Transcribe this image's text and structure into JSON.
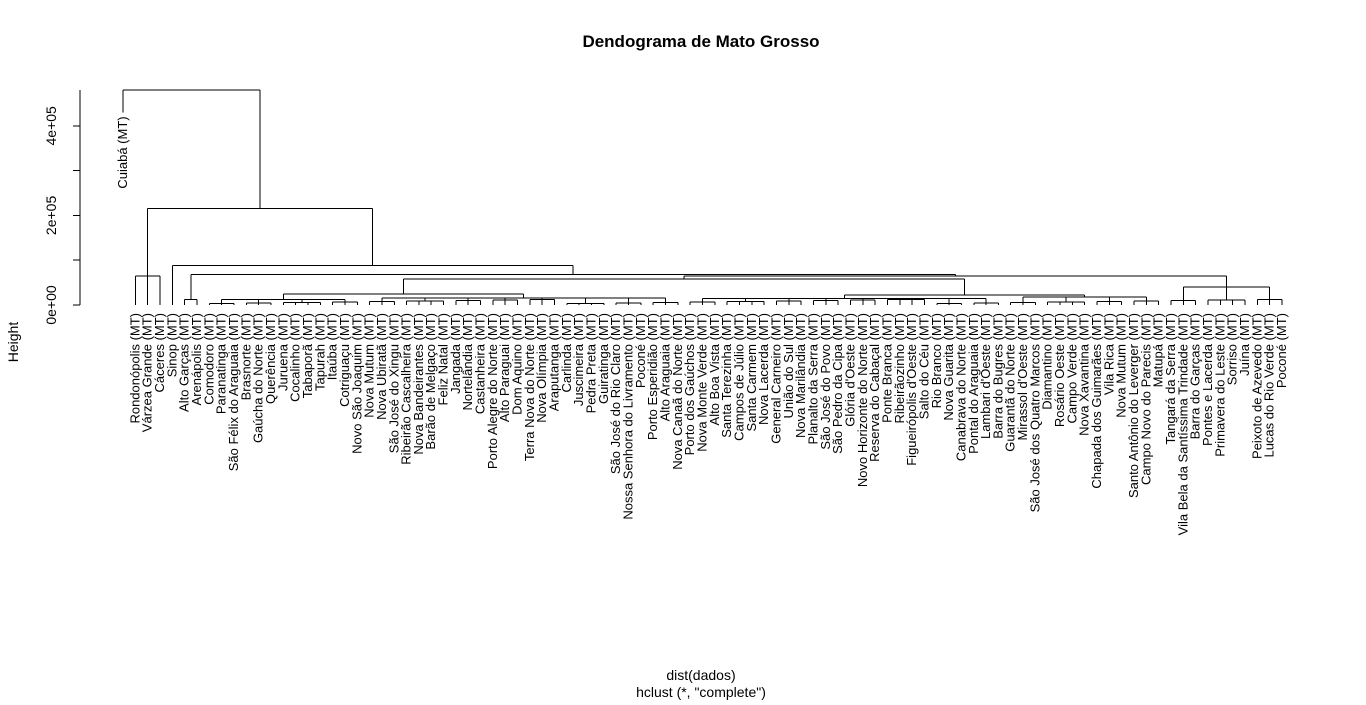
{
  "chart_data": {
    "type": "dendrogram",
    "title": "Dendograma de Mato Grosso",
    "ylabel": "Height",
    "xlabel": "dist(dados)",
    "sub": "hclust (*, \"complete\")",
    "ylim": [
      0,
      480000
    ],
    "yticks": [
      {
        "value": 0,
        "label": "0e+00"
      },
      {
        "value": 200000,
        "label": "2e+05"
      },
      {
        "value": 400000,
        "label": "4e+05"
      }
    ],
    "leaves": [
      {
        "name": "Cuiabá (MT)",
        "height": 430000
      },
      {
        "name": "Rondonópolis (MT)",
        "height": 0
      },
      {
        "name": "Várzea Grande (MT)",
        "height": 0
      },
      {
        "name": "Cáceres (MT)",
        "height": 0
      },
      {
        "name": "Sinop (MT)",
        "height": 0
      },
      {
        "name": "Alto Garças (MT)",
        "height": 0
      },
      {
        "name": "Arenápolis (MT)",
        "height": 0
      },
      {
        "name": "Comodoro (MT)",
        "height": 0
      },
      {
        "name": "Paranatinga (MT)",
        "height": 0
      },
      {
        "name": "São Félix do Araguaia (MT)",
        "height": 0
      },
      {
        "name": "Brasnorte (MT)",
        "height": 0
      },
      {
        "name": "Gaúcha do Norte (MT)",
        "height": 0
      },
      {
        "name": "Querência (MT)",
        "height": 0
      },
      {
        "name": "Juruena (MT)",
        "height": 0
      },
      {
        "name": "Cocalinho (MT)",
        "height": 0
      },
      {
        "name": "Tabaporã (MT)",
        "height": 0
      },
      {
        "name": "Tapurah (MT)",
        "height": 0
      },
      {
        "name": "Itaúba (MT)",
        "height": 0
      },
      {
        "name": "Cotriguaçu (MT)",
        "height": 0
      },
      {
        "name": "Novo São Joaquim (MT)",
        "height": 0
      },
      {
        "name": "Nova Mutum (MT)",
        "height": 0
      },
      {
        "name": "Nova Ubiratã (MT)",
        "height": 0
      },
      {
        "name": "São José do Xingu (MT)",
        "height": 0
      },
      {
        "name": "Ribeirão Cascalheira (MT)",
        "height": 0
      },
      {
        "name": "Nova Bandeirantes (MT)",
        "height": 0
      },
      {
        "name": "Barão de Melgaço (MT)",
        "height": 0
      },
      {
        "name": "Feliz Natal (MT)",
        "height": 0
      },
      {
        "name": "Jangada (MT)",
        "height": 0
      },
      {
        "name": "Nortelândia (MT)",
        "height": 0
      },
      {
        "name": "Castanheira (MT)",
        "height": 0
      },
      {
        "name": "Porto Alegre do Norte (MT)",
        "height": 0
      },
      {
        "name": "Alto Paraguai (MT)",
        "height": 0
      },
      {
        "name": "Dom Aquino (MT)",
        "height": 0
      },
      {
        "name": "Terra Nova do Norte (MT)",
        "height": 0
      },
      {
        "name": "Nova Olímpia (MT)",
        "height": 0
      },
      {
        "name": "Araputanga (MT)",
        "height": 0
      },
      {
        "name": "Carlinda (MT)",
        "height": 0
      },
      {
        "name": "Juscimeira (MT)",
        "height": 0
      },
      {
        "name": "Pedra Preta (MT)",
        "height": 0
      },
      {
        "name": "Guiratinga (MT)",
        "height": 0
      },
      {
        "name": "São José do Rio Claro (MT)",
        "height": 0
      },
      {
        "name": "Nossa Senhora do Livramento (MT)",
        "height": 0
      },
      {
        "name": "Poconé (MT)",
        "height": 0
      },
      {
        "name": "Porto Esperidião (MT)",
        "height": 0
      },
      {
        "name": "Alto Araguaia (MT)",
        "height": 0
      },
      {
        "name": "Nova Canaã do Norte (MT)",
        "height": 0
      },
      {
        "name": "Porto dos Gaúchos (MT)",
        "height": 0
      },
      {
        "name": "Nova Monte Verde (MT)",
        "height": 0
      },
      {
        "name": "Alto Boa Vista (MT)",
        "height": 0
      },
      {
        "name": "Santa Terezinha (MT)",
        "height": 0
      },
      {
        "name": "Campos de Júlio (MT)",
        "height": 0
      },
      {
        "name": "Santa Carmem (MT)",
        "height": 0
      },
      {
        "name": "Nova Lacerda (MT)",
        "height": 0
      },
      {
        "name": "General Carneiro (MT)",
        "height": 0
      },
      {
        "name": "União do Sul (MT)",
        "height": 0
      },
      {
        "name": "Nova Marilândia (MT)",
        "height": 0
      },
      {
        "name": "Planalto da Serra (MT)",
        "height": 0
      },
      {
        "name": "São José do Povo (MT)",
        "height": 0
      },
      {
        "name": "São Pedro da Cipa (MT)",
        "height": 0
      },
      {
        "name": "Glória d'Oeste (MT)",
        "height": 0
      },
      {
        "name": "Novo Horizonte do Norte (MT)",
        "height": 0
      },
      {
        "name": "Reserva do Cabaçal (MT)",
        "height": 0
      },
      {
        "name": "Ponte Branca (MT)",
        "height": 0
      },
      {
        "name": "Ribeirãozinho (MT)",
        "height": 0
      },
      {
        "name": "Figueirópolis d'Oeste (MT)",
        "height": 0
      },
      {
        "name": "Salto do Céu (MT)",
        "height": 0
      },
      {
        "name": "Rio Branco (MT)",
        "height": 0
      },
      {
        "name": "Nova Guarita (MT)",
        "height": 0
      },
      {
        "name": "Canabrava do Norte (MT)",
        "height": 0
      },
      {
        "name": "Pontal do Araguaia (MT)",
        "height": 0
      },
      {
        "name": "Lambari d'Oeste (MT)",
        "height": 0
      },
      {
        "name": "Barra do Bugres (MT)",
        "height": 0
      },
      {
        "name": "Guarantã do Norte (MT)",
        "height": 0
      },
      {
        "name": "Mirassol d'Oeste (MT)",
        "height": 0
      },
      {
        "name": "São José dos Quatro Marcos (MT)",
        "height": 0
      },
      {
        "name": "Diamantino (MT)",
        "height": 0
      },
      {
        "name": "Rosário Oeste (MT)",
        "height": 0
      },
      {
        "name": "Campo Verde (MT)",
        "height": 0
      },
      {
        "name": "Nova Xavantina (MT)",
        "height": 0
      },
      {
        "name": "Chapada dos Guimarães (MT)",
        "height": 0
      },
      {
        "name": "Vila Rica (MT)",
        "height": 0
      },
      {
        "name": "Nova Mutum (MT)",
        "height": 0
      },
      {
        "name": "Santo Antônio do Leverger (MT)",
        "height": 0
      },
      {
        "name": "Campo Novo do Parecis (MT)",
        "height": 0
      },
      {
        "name": "Matupá (MT)",
        "height": 0
      },
      {
        "name": "Tangará da Serra (MT)",
        "height": 0
      },
      {
        "name": "Vila Bela da Santíssima Trindade (MT)",
        "height": 0
      },
      {
        "name": "Barra do Garças (MT)",
        "height": 0
      },
      {
        "name": "Pontes e Lacerda (MT)",
        "height": 0
      },
      {
        "name": "Primavera do Leste (MT)",
        "height": 0
      },
      {
        "name": "Sorriso (MT)",
        "height": 0
      },
      {
        "name": "Juína (MT)",
        "height": 0
      },
      {
        "name": "Peixoto de Azevedo (MT)",
        "height": 0
      },
      {
        "name": "Lucas do Rio Verde (MT)",
        "height": 0
      },
      {
        "name": "Poconé (MT)",
        "height": 0
      }
    ],
    "merges": [
      {
        "height": 480000
      },
      {
        "height": 215000
      },
      {
        "height": 88000
      },
      {
        "height": 68000
      },
      {
        "height": 65000
      },
      {
        "height": 58000
      },
      {
        "height": 40000
      }
    ]
  }
}
